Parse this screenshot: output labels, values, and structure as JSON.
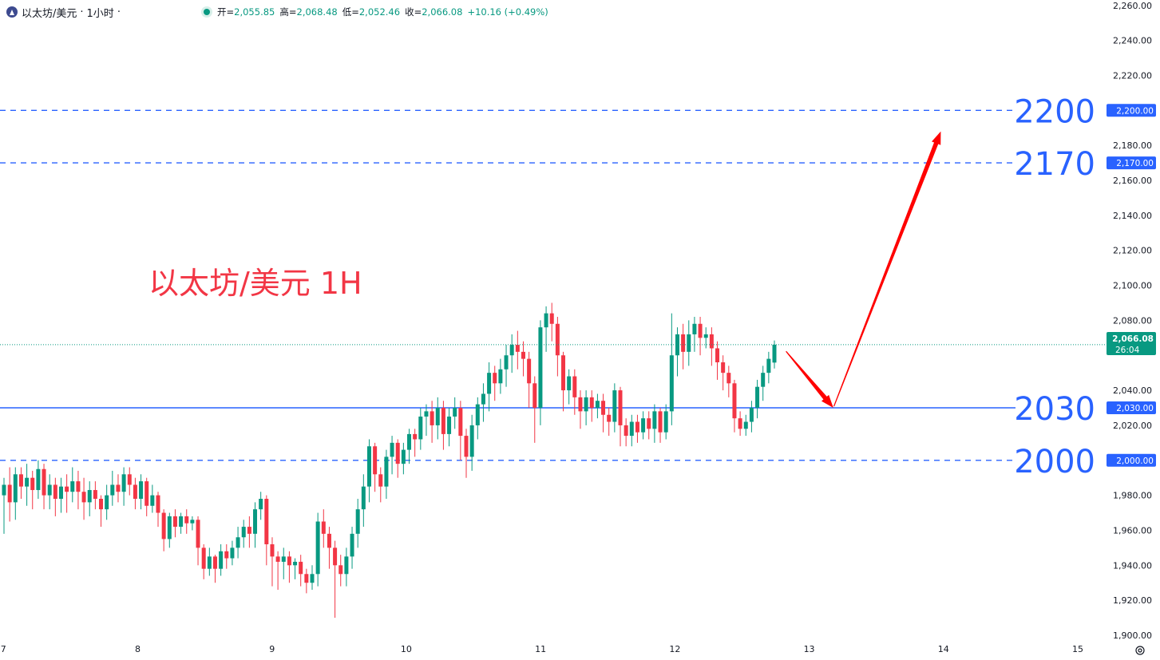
{
  "header": {
    "symbol": "以太坊/美元",
    "interval": "1小时",
    "ohlc": [
      {
        "label": "开=",
        "value": "2,055.85"
      },
      {
        "label": "高=",
        "value": "2,068.48"
      },
      {
        "label": "低=",
        "value": "2,052.46"
      },
      {
        "label": "收=",
        "value": "2,066.08"
      }
    ],
    "change": "+10.16 (+0.49%)"
  },
  "colors": {
    "up": "#089981",
    "down": "#f23645",
    "level_line": "#2962ff",
    "annotation_text": "#f23645",
    "arrow": "#ff0000",
    "axis_text": "#131722"
  },
  "price_axis": {
    "ticks": [
      "2,260.00",
      "2,240.00",
      "2,220.00",
      "2,180.00",
      "2,160.00",
      "2,140.00",
      "2,120.00",
      "2,100.00",
      "2,080.00",
      "2,040.00",
      "2,020.00",
      "1,980.00",
      "1,960.00",
      "1,940.00",
      "1,920.00",
      "1,900.00"
    ],
    "last_price_label": "2,066.08",
    "countdown": "26:04"
  },
  "time_axis": {
    "ticks": [
      "7",
      "8",
      "9",
      "10",
      "11",
      "12",
      "13",
      "14",
      "15"
    ]
  },
  "annotation": {
    "title": "以太坊/美元 1H"
  },
  "levels": [
    {
      "price": 2200,
      "big_label": "2200",
      "axis_label": "2,200.00",
      "style": "dashed"
    },
    {
      "price": 2170,
      "big_label": "2170",
      "axis_label": "2,170.00",
      "style": "dashed"
    },
    {
      "price": 2030,
      "big_label": "2030",
      "axis_label": "2,030.00",
      "style": "solid"
    },
    {
      "price": 2000,
      "big_label": "2000",
      "axis_label": "2,000.00",
      "style": "dashed"
    }
  ],
  "chart_data": {
    "type": "candlestick",
    "y_range": [
      1890,
      2270
    ],
    "x_range_days": [
      7,
      15
    ],
    "last_close": 2066.08,
    "projection": [
      {
        "day": 12.82,
        "price": 2063
      },
      {
        "day": 13.18,
        "price": 2030
      },
      {
        "day": 13.98,
        "price": 2188
      }
    ],
    "candles": [
      [
        1980,
        1986,
        1975,
        1990,
        1958
      ],
      [
        1986,
        1976,
        1972,
        1996,
        1965
      ],
      [
        1976,
        1992,
        1973,
        1996,
        1966
      ],
      [
        1992,
        1985,
        1980,
        1996,
        1978
      ],
      [
        1985,
        1990,
        1978,
        1998,
        1974
      ],
      [
        1990,
        1983,
        1976,
        1994,
        1972
      ],
      [
        1983,
        1995,
        1980,
        2000,
        1978
      ],
      [
        1995,
        1980,
        1976,
        1998,
        1972
      ],
      [
        1980,
        1986,
        1976,
        1992,
        1972
      ],
      [
        1986,
        1978,
        1972,
        1990,
        1968
      ],
      [
        1978,
        1985,
        1974,
        1990,
        1970
      ],
      [
        1985,
        1982,
        1976,
        1992,
        1970
      ],
      [
        1982,
        1988,
        1978,
        1996,
        1976
      ],
      [
        1988,
        1982,
        1976,
        1994,
        1972
      ],
      [
        1982,
        1976,
        1968,
        1990,
        1966
      ],
      [
        1976,
        1983,
        1972,
        1988,
        1968
      ],
      [
        1983,
        1978,
        1974,
        1988,
        1972
      ],
      [
        1978,
        1972,
        1966,
        1980,
        1962
      ],
      [
        1972,
        1980,
        1968,
        1986,
        1966
      ],
      [
        1980,
        1986,
        1976,
        1994,
        1974
      ],
      [
        1986,
        1982,
        1980,
        1992,
        1976
      ],
      [
        1982,
        1992,
        1978,
        1996,
        1974
      ],
      [
        1992,
        1986,
        1982,
        1996,
        1980
      ],
      [
        1986,
        1978,
        1974,
        1990,
        1972
      ],
      [
        1978,
        1988,
        1974,
        1992,
        1972
      ],
      [
        1988,
        1974,
        1970,
        1990,
        1968
      ],
      [
        1974,
        1980,
        1972,
        1986,
        1970
      ],
      [
        1980,
        1970,
        1966,
        1982,
        1962
      ],
      [
        1970,
        1955,
        1950,
        1972,
        1948
      ],
      [
        1955,
        1968,
        1952,
        1970,
        1950
      ],
      [
        1968,
        1962,
        1958,
        1972,
        1956
      ],
      [
        1962,
        1968,
        1960,
        1970,
        1958
      ],
      [
        1968,
        1964,
        1960,
        1972,
        1958
      ],
      [
        1964,
        1966,
        1962,
        1968,
        1960
      ],
      [
        1966,
        1950,
        1944,
        1968,
        1940
      ],
      [
        1950,
        1938,
        1934,
        1952,
        1932
      ],
      [
        1938,
        1945,
        1936,
        1950,
        1934
      ],
      [
        1945,
        1938,
        1934,
        1946,
        1930
      ],
      [
        1938,
        1948,
        1936,
        1952,
        1934
      ],
      [
        1948,
        1944,
        1940,
        1952,
        1938
      ],
      [
        1944,
        1950,
        1942,
        1954,
        1940
      ],
      [
        1950,
        1956,
        1946,
        1962,
        1944
      ],
      [
        1956,
        1962,
        1952,
        1966,
        1950
      ],
      [
        1962,
        1958,
        1954,
        1968,
        1950
      ],
      [
        1958,
        1972,
        1954,
        1976,
        1950
      ],
      [
        1972,
        1978,
        1968,
        1982,
        1966
      ],
      [
        1978,
        1952,
        1946,
        1980,
        1940
      ],
      [
        1952,
        1945,
        1940,
        1956,
        1928
      ],
      [
        1945,
        1942,
        1936,
        1948,
        1926
      ],
      [
        1942,
        1945,
        1938,
        1950,
        1932
      ],
      [
        1945,
        1940,
        1936,
        1948,
        1930
      ],
      [
        1940,
        1942,
        1934,
        1944,
        1932
      ],
      [
        1942,
        1935,
        1930,
        1946,
        1928
      ],
      [
        1935,
        1930,
        1928,
        1938,
        1924
      ],
      [
        1930,
        1935,
        1928,
        1940,
        1926
      ],
      [
        1935,
        1965,
        1930,
        1970,
        1928
      ],
      [
        1965,
        1958,
        1952,
        1972,
        1950
      ],
      [
        1958,
        1950,
        1942,
        1962,
        1938
      ],
      [
        1950,
        1940,
        1934,
        1954,
        1910
      ],
      [
        1940,
        1935,
        1930,
        1946,
        1928
      ],
      [
        1935,
        1945,
        1932,
        1950,
        1928
      ],
      [
        1945,
        1958,
        1940,
        1962,
        1938
      ],
      [
        1958,
        1972,
        1954,
        1978,
        1950
      ],
      [
        1972,
        1985,
        1965,
        1992,
        1962
      ],
      [
        1985,
        2008,
        1980,
        2012,
        1976
      ],
      [
        2008,
        1992,
        1985,
        2010,
        1982
      ],
      [
        1992,
        1985,
        1980,
        1996,
        1976
      ],
      [
        1985,
        2002,
        1980,
        2006,
        1978
      ],
      [
        2002,
        2010,
        1995,
        2014,
        1992
      ],
      [
        2010,
        1998,
        1992,
        2012,
        1990
      ],
      [
        1998,
        2006,
        1995,
        2010,
        1992
      ],
      [
        2006,
        2015,
        2000,
        2018,
        1998
      ],
      [
        2015,
        2012,
        2006,
        2018,
        2002
      ],
      [
        2012,
        2025,
        2008,
        2030,
        2006
      ],
      [
        2025,
        2028,
        2018,
        2032,
        2014
      ],
      [
        2028,
        2020,
        2014,
        2034,
        2010
      ],
      [
        2020,
        2030,
        2016,
        2036,
        2012
      ],
      [
        2030,
        2015,
        2008,
        2034,
        2006
      ],
      [
        2015,
        2025,
        2010,
        2030,
        2008
      ],
      [
        2025,
        2030,
        2022,
        2036,
        2018
      ],
      [
        2030,
        2014,
        2006,
        2034,
        2000
      ],
      [
        2014,
        2002,
        1994,
        2018,
        1990
      ],
      [
        2002,
        2020,
        1998,
        2026,
        1994
      ],
      [
        2020,
        2032,
        2016,
        2036,
        2012
      ],
      [
        2032,
        2038,
        2026,
        2044,
        2022
      ],
      [
        2038,
        2050,
        2032,
        2056,
        2028
      ],
      [
        2050,
        2044,
        2038,
        2054,
        2034
      ],
      [
        2044,
        2052,
        2040,
        2058,
        2038
      ],
      [
        2052,
        2060,
        2046,
        2066,
        2042
      ],
      [
        2060,
        2066,
        2054,
        2072,
        2050
      ],
      [
        2066,
        2062,
        2056,
        2074,
        2052
      ],
      [
        2062,
        2058,
        2052,
        2068,
        2048
      ],
      [
        2058,
        2044,
        2036,
        2062,
        2030
      ],
      [
        2044,
        2030,
        2024,
        2048,
        2010
      ],
      [
        2030,
        2076,
        2024,
        2080,
        2020
      ],
      [
        2076,
        2084,
        2068,
        2088,
        2062
      ],
      [
        2084,
        2078,
        2072,
        2090,
        2068
      ],
      [
        2078,
        2060,
        2052,
        2082,
        2048
      ],
      [
        2060,
        2040,
        2032,
        2062,
        2028
      ],
      [
        2040,
        2048,
        2036,
        2052,
        2032
      ],
      [
        2048,
        2036,
        2030,
        2052,
        2026
      ],
      [
        2036,
        2028,
        2022,
        2040,
        2018
      ],
      [
        2028,
        2036,
        2024,
        2040,
        2020
      ],
      [
        2036,
        2030,
        2026,
        2040,
        2022
      ],
      [
        2030,
        2034,
        2028,
        2038,
        2024
      ],
      [
        2034,
        2026,
        2020,
        2038,
        2016
      ],
      [
        2026,
        2022,
        2018,
        2030,
        2014
      ],
      [
        2022,
        2040,
        2018,
        2044,
        2016
      ],
      [
        2040,
        2020,
        2012,
        2042,
        2008
      ],
      [
        2020,
        2014,
        2010,
        2024,
        2008
      ],
      [
        2014,
        2022,
        2012,
        2026,
        2008
      ],
      [
        2022,
        2016,
        2012,
        2026,
        2010
      ],
      [
        2016,
        2024,
        2014,
        2028,
        2012
      ],
      [
        2024,
        2018,
        2014,
        2028,
        2012
      ],
      [
        2018,
        2028,
        2014,
        2032,
        2010
      ],
      [
        2028,
        2016,
        2012,
        2030,
        2010
      ],
      [
        2016,
        2028,
        2014,
        2032,
        2012
      ],
      [
        2028,
        2060,
        2024,
        2084,
        2020
      ],
      [
        2060,
        2072,
        2052,
        2076,
        2048
      ],
      [
        2072,
        2062,
        2056,
        2078,
        2052
      ],
      [
        2062,
        2072,
        2058,
        2080,
        2054
      ],
      [
        2072,
        2078,
        2066,
        2082,
        2062
      ],
      [
        2078,
        2070,
        2064,
        2082,
        2060
      ],
      [
        2070,
        2072,
        2066,
        2076,
        2064
      ],
      [
        2072,
        2064,
        2058,
        2076,
        2054
      ],
      [
        2064,
        2056,
        2050,
        2068,
        2046
      ],
      [
        2056,
        2050,
        2044,
        2060,
        2040
      ],
      [
        2050,
        2044,
        2040,
        2054,
        2036
      ],
      [
        2044,
        2024,
        2018,
        2046,
        2016
      ],
      [
        2024,
        2018,
        2016,
        2028,
        2014
      ],
      [
        2018,
        2022,
        2016,
        2026,
        2014
      ],
      [
        2022,
        2030,
        2018,
        2034,
        2016
      ],
      [
        2030,
        2042,
        2026,
        2046,
        2024
      ],
      [
        2042,
        2050,
        2036,
        2054,
        2034
      ],
      [
        2050,
        2058,
        2046,
        2062,
        2044
      ],
      [
        2055.85,
        2066.08,
        2052.46,
        2068.48,
        2052.46
      ]
    ]
  }
}
